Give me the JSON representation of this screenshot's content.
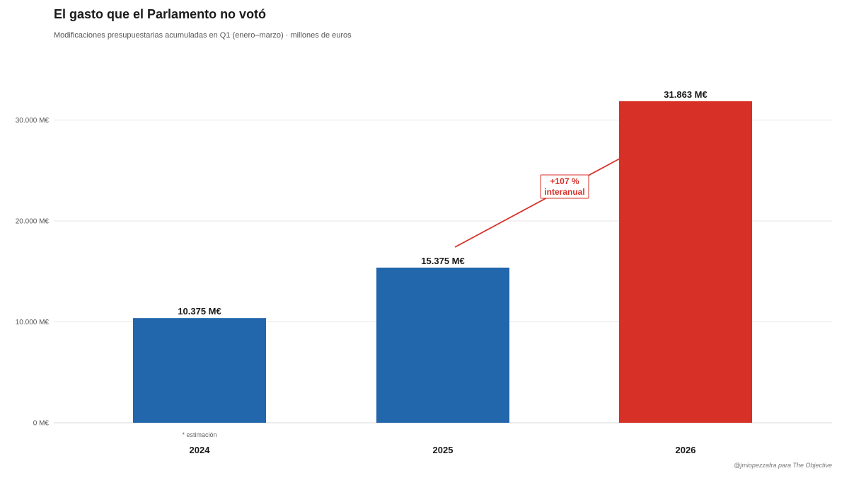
{
  "chart_data": {
    "type": "bar",
    "title": "El gasto que el Parlamento no votó",
    "subtitle": "Modificaciones presupuestarias acumuladas en Q1 (enero–marzo) · millones de euros",
    "categories": [
      "2024",
      "2025",
      "2026"
    ],
    "values": [
      10375,
      15375,
      31863
    ],
    "value_labels": [
      "10.375 M€",
      "15.375 M€",
      "31.863 M€"
    ],
    "bar_colors": [
      "#2266ac",
      "#2266ac",
      "#d73027"
    ],
    "ylim": [
      0,
      35000
    ],
    "yticks": [
      0,
      10000,
      20000,
      30000
    ],
    "ytick_labels": [
      "0 M€",
      "10.000 M€",
      "20.000 M€",
      "30.000 M€"
    ],
    "grid": true,
    "notes": [
      {
        "category": "2024",
        "text": "* estimación"
      }
    ],
    "annotation": {
      "lines": [
        "+107 %",
        "interanual"
      ],
      "color": "#d73027",
      "from_category": "2025",
      "to_category": "2026"
    },
    "credit": "@jmiopezzafra para The Objective"
  }
}
